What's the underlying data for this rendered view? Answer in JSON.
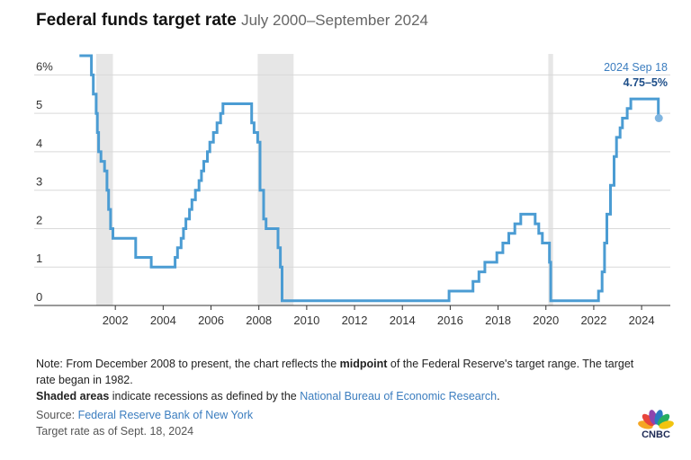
{
  "header": {
    "title": "Federal funds target rate",
    "subtitle": "July 2000–September 2024"
  },
  "chart_data": {
    "type": "line",
    "title": "Federal funds target rate",
    "subtitle": "July 2000–September 2024",
    "xlabel": "",
    "ylabel": "",
    "xlim": [
      2000.0,
      2025.2
    ],
    "ylim": [
      0,
      6.5
    ],
    "x_ticks": [
      2002,
      2004,
      2006,
      2008,
      2010,
      2012,
      2014,
      2016,
      2018,
      2020,
      2022,
      2024
    ],
    "x_tick_labels": [
      "2002",
      "2004",
      "2006",
      "2008",
      "2010",
      "2012",
      "2014",
      "2016",
      "2018",
      "2020",
      "2022",
      "2024"
    ],
    "y_ticks": [
      0,
      1,
      2,
      3,
      4,
      5,
      6
    ],
    "y_tick_labels": [
      "0",
      "1",
      "2",
      "3",
      "4",
      "5",
      "6%"
    ],
    "grid": "horizontal",
    "recessions": [
      [
        2001.2,
        2001.9
      ],
      [
        2007.95,
        2009.45
      ],
      [
        2020.1,
        2020.3
      ]
    ],
    "series": [
      {
        "color": "#4b9cd3",
        "step": true,
        "points": [
          [
            2000.5,
            6.5
          ],
          [
            2001.0,
            6.0
          ],
          [
            2001.08,
            5.5
          ],
          [
            2001.2,
            5.0
          ],
          [
            2001.25,
            4.5
          ],
          [
            2001.3,
            4.0
          ],
          [
            2001.4,
            3.75
          ],
          [
            2001.55,
            3.5
          ],
          [
            2001.65,
            3.0
          ],
          [
            2001.72,
            2.5
          ],
          [
            2001.8,
            2.0
          ],
          [
            2001.9,
            1.75
          ],
          [
            2002.85,
            1.25
          ],
          [
            2003.5,
            1.0
          ],
          [
            2004.5,
            1.25
          ],
          [
            2004.6,
            1.5
          ],
          [
            2004.75,
            1.75
          ],
          [
            2004.85,
            2.0
          ],
          [
            2004.95,
            2.25
          ],
          [
            2005.1,
            2.5
          ],
          [
            2005.2,
            2.75
          ],
          [
            2005.35,
            3.0
          ],
          [
            2005.5,
            3.25
          ],
          [
            2005.6,
            3.5
          ],
          [
            2005.7,
            3.75
          ],
          [
            2005.85,
            4.0
          ],
          [
            2005.95,
            4.25
          ],
          [
            2006.1,
            4.5
          ],
          [
            2006.25,
            4.75
          ],
          [
            2006.4,
            5.0
          ],
          [
            2006.5,
            5.25
          ],
          [
            2007.7,
            4.75
          ],
          [
            2007.8,
            4.5
          ],
          [
            2007.95,
            4.25
          ],
          [
            2008.05,
            3.0
          ],
          [
            2008.1,
            3.0
          ],
          [
            2008.2,
            2.25
          ],
          [
            2008.3,
            2.0
          ],
          [
            2008.8,
            1.5
          ],
          [
            2008.9,
            1.0
          ],
          [
            2008.97,
            0.125
          ],
          [
            2015.95,
            0.375
          ],
          [
            2016.95,
            0.625
          ],
          [
            2017.2,
            0.875
          ],
          [
            2017.45,
            1.125
          ],
          [
            2017.95,
            1.375
          ],
          [
            2018.2,
            1.625
          ],
          [
            2018.45,
            1.875
          ],
          [
            2018.7,
            2.125
          ],
          [
            2018.95,
            2.375
          ],
          [
            2019.55,
            2.125
          ],
          [
            2019.7,
            1.875
          ],
          [
            2019.85,
            1.625
          ],
          [
            2020.15,
            1.125
          ],
          [
            2020.2,
            0.125
          ],
          [
            2022.2,
            0.375
          ],
          [
            2022.35,
            0.875
          ],
          [
            2022.45,
            1.625
          ],
          [
            2022.55,
            2.375
          ],
          [
            2022.7,
            3.125
          ],
          [
            2022.85,
            3.875
          ],
          [
            2022.95,
            4.375
          ],
          [
            2023.1,
            4.625
          ],
          [
            2023.2,
            4.875
          ],
          [
            2023.4,
            5.125
          ],
          [
            2023.55,
            5.375
          ],
          [
            2024.7,
            4.875
          ],
          [
            2024.72,
            4.875
          ]
        ]
      }
    ],
    "annotation": {
      "date": "2024 Sep 18",
      "value": "4.75–5%",
      "x": 2024.72,
      "y": 4.875
    }
  },
  "notes": {
    "note_pre": "Note: From December 2008 to present, the chart reflects the ",
    "note_bold": "midpoint",
    "note_post": " of the Federal Reserve's target range. The target rate began in 1982.",
    "shaded_bold": "Shaded areas",
    "shaded_pre": " indicate recessions as defined by the ",
    "shaded_link": "National Bureau of Economic Research",
    "shaded_post": ".",
    "source_label": "Source: ",
    "source_link": "Federal Reserve Bank of New York",
    "asof": "Target rate as of Sept. 18, 2024"
  },
  "logo": {
    "text": "CNBC",
    "colors": [
      "#f5a623",
      "#e8453c",
      "#8e44ad",
      "#2a7ac0",
      "#27ae60",
      "#f1c40f"
    ]
  }
}
